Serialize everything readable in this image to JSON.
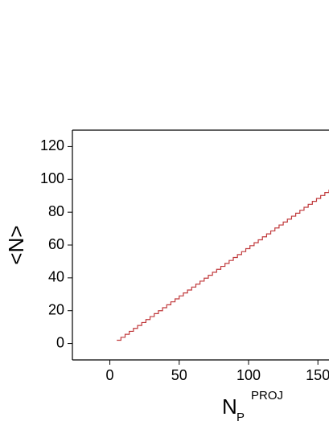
{
  "chart_data": {
    "type": "step",
    "x_label": {
      "main": "N",
      "sub": "P",
      "sup": "PROJ"
    },
    "y_label": "<N>",
    "color": "#c0393b",
    "x": [
      5,
      8,
      11,
      14,
      17,
      20,
      23,
      26,
      29,
      32,
      35,
      38,
      41,
      44,
      47,
      50,
      53,
      56,
      59,
      62,
      65,
      68,
      71,
      74,
      77,
      80,
      83,
      86,
      89,
      92,
      95,
      98,
      101,
      104,
      107,
      110,
      113,
      116,
      119,
      122,
      125,
      128,
      131,
      134,
      137,
      140,
      143,
      146,
      149,
      152,
      155,
      158
    ],
    "values": [
      2,
      3.8,
      5.6,
      7.4,
      9.2,
      11,
      12.8,
      14.6,
      16.4,
      18.2,
      20,
      21.8,
      23.6,
      25.4,
      27.2,
      29,
      30.8,
      32.6,
      34.4,
      36.2,
      38,
      39.8,
      41.6,
      43.4,
      45.2,
      47,
      48.8,
      50.6,
      52.4,
      54.2,
      56,
      57.8,
      59.6,
      61.4,
      63.2,
      65,
      66.8,
      68.6,
      70.4,
      72.2,
      74,
      75.8,
      77.6,
      79.4,
      81.2,
      83,
      84.8,
      86.6,
      88.4,
      90.2,
      92,
      93.8
    ],
    "xlim": [
      -27,
      158
    ],
    "xticks": [
      0,
      50,
      100,
      150
    ],
    "ylim": [
      -10,
      130
    ],
    "yticks": [
      0,
      20,
      40,
      60,
      80,
      100,
      120
    ]
  }
}
